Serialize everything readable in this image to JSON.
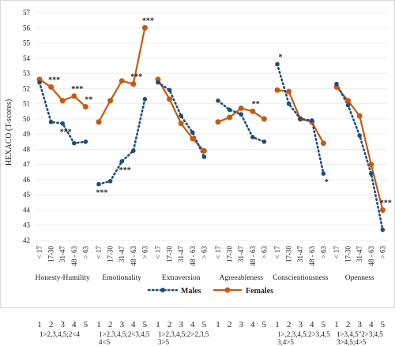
{
  "chart_data": {
    "type": "line",
    "ylabel": "HEXACO (T-scores)",
    "ylim": [
      42,
      57
    ],
    "yticks": [
      42,
      43,
      44,
      45,
      46,
      47,
      48,
      49,
      50,
      51,
      52,
      53,
      54,
      55,
      56,
      57
    ],
    "age_groups": [
      "< 17",
      "17-30",
      "31-47",
      "48 - 63",
      "> 63"
    ],
    "groups": [
      {
        "name": "Honesty-Humility",
        "males": [
          52.4,
          49.8,
          49.7,
          48.4,
          48.5
        ],
        "females": [
          52.6,
          52.1,
          51.2,
          51.5,
          50.8
        ],
        "comparison": "1>2,3,4,5;2<4"
      },
      {
        "name": "Emotionality",
        "males": [
          45.7,
          45.9,
          47.2,
          47.9,
          51.3
        ],
        "females": [
          49.8,
          51.2,
          52.5,
          52.3,
          56.0
        ],
        "comparison": "1>2,3,4,5;2<3,4,5\n4<5"
      },
      {
        "name": "Extraversion",
        "males": [
          52.4,
          51.9,
          50.2,
          49.1,
          47.5
        ],
        "females": [
          52.6,
          51.3,
          49.7,
          48.7,
          47.9
        ],
        "comparison": "1>2,3,4,5;2>2,3,5\n3>5"
      },
      {
        "name": "Agreeableness",
        "males": [
          51.2,
          50.6,
          50.3,
          48.8,
          48.5
        ],
        "females": [
          49.8,
          50.1,
          50.7,
          50.5,
          50.0
        ],
        "comparison": ""
      },
      {
        "name": "Conscientiousness",
        "males": [
          53.6,
          51.0,
          50.0,
          49.9,
          46.4
        ],
        "females": [
          51.9,
          51.8,
          50.0,
          49.8,
          48.4
        ],
        "comparison": "1>,2,3,4,5;2>3,4,5\n3,4>5"
      },
      {
        "name": "Openness",
        "males": [
          52.3,
          50.9,
          48.9,
          46.4,
          42.7
        ],
        "females": [
          52.1,
          51.2,
          50.2,
          47.0,
          44.0
        ],
        "comparison": "1>3,4,5\"2>3,4,5\n3>4,5;4>5"
      }
    ],
    "series": [
      {
        "name": "Males",
        "color": "#1f4e79",
        "style": "dotted"
      },
      {
        "name": "Females",
        "color": "#c55a11",
        "style": "solid"
      }
    ],
    "significance": [
      {
        "group": 0,
        "index": 1,
        "text": "***"
      },
      {
        "group": 0,
        "index": 2,
        "text": "***"
      },
      {
        "group": 0,
        "index": 3,
        "text": "***"
      },
      {
        "group": 0,
        "index": 4,
        "text": "**"
      },
      {
        "group": 1,
        "index": 0,
        "text": "***"
      },
      {
        "group": 1,
        "index": 2,
        "text": "***"
      },
      {
        "group": 1,
        "index": 3,
        "text": "***"
      },
      {
        "group": 1,
        "index": 4,
        "text": "***"
      },
      {
        "group": 3,
        "index": 3,
        "text": "**"
      },
      {
        "group": 4,
        "index": 0,
        "text": "*"
      },
      {
        "group": 4,
        "index": 4,
        "text": "*"
      },
      {
        "group": 5,
        "index": 4,
        "text": "***"
      }
    ],
    "index_labels": [
      "1",
      "2",
      "3",
      "4",
      "5"
    ],
    "grid": true,
    "legend_position": "bottom"
  }
}
